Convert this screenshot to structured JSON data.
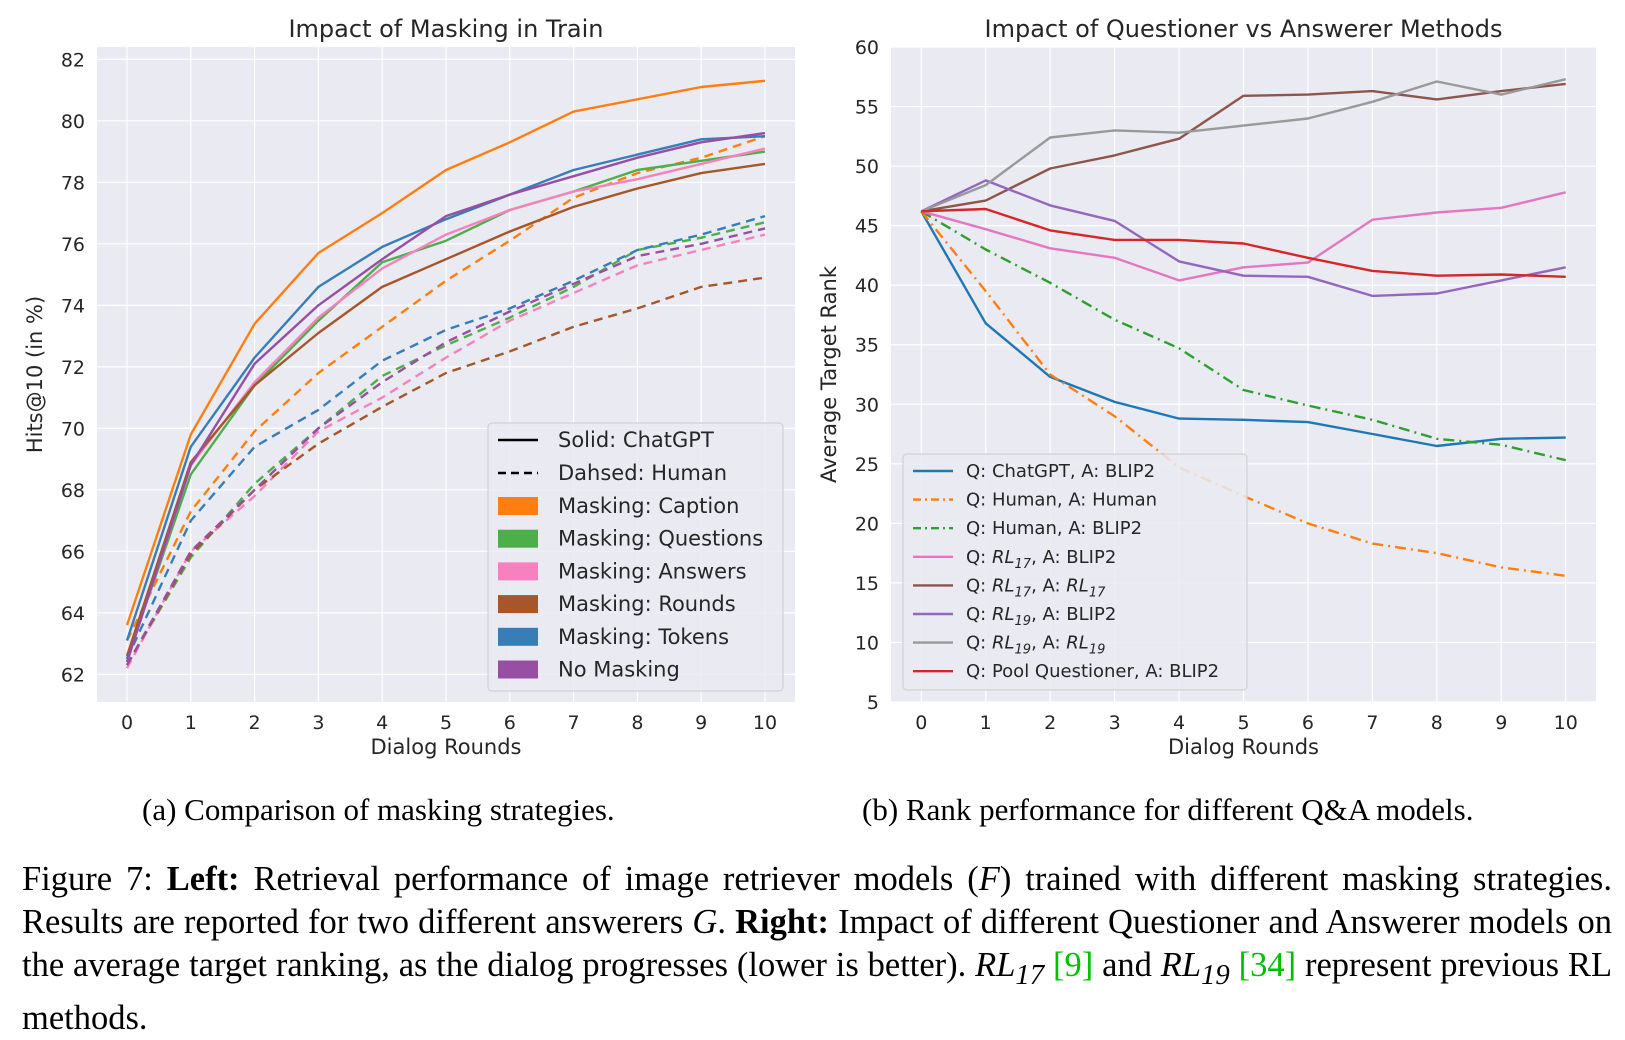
{
  "chart_data": [
    {
      "type": "line",
      "title": "Impact of Masking in Train",
      "xlabel": "Dialog Rounds",
      "ylabel": "Hits@10 (in %)",
      "x": [
        0,
        1,
        2,
        3,
        4,
        5,
        6,
        7,
        8,
        9,
        10
      ],
      "xticks": [
        "0",
        "1",
        "2",
        "3",
        "4",
        "5",
        "6",
        "7",
        "8",
        "9",
        "10"
      ],
      "yticks": [
        "62",
        "64",
        "66",
        "68",
        "70",
        "72",
        "74",
        "76",
        "78",
        "80",
        "82"
      ],
      "ylim": [
        61.1,
        82.4
      ],
      "grid": true,
      "legend_position": "bottom-right",
      "style_legend": [
        {
          "label": "Solid:     ChatGPT",
          "dash": false
        },
        {
          "label": "Dahsed: Human",
          "dash": true
        }
      ],
      "color_legend": [
        {
          "label": "Masking: Caption",
          "color": "#ff7f0e"
        },
        {
          "label": "Masking: Questions",
          "color": "#4daf4a"
        },
        {
          "label": "Masking: Answers",
          "color": "#f781bf"
        },
        {
          "label": "Masking: Rounds",
          "color": "#a65628"
        },
        {
          "label": "Masking: Tokens",
          "color": "#377eb8"
        },
        {
          "label": "No Masking",
          "color": "#984ea3"
        }
      ],
      "series": [
        {
          "name": "Masking: Caption - ChatGPT",
          "color": "#ff7f0e",
          "dash": false,
          "values": [
            63.6,
            69.8,
            73.4,
            75.7,
            77.0,
            78.4,
            79.3,
            80.3,
            80.7,
            81.1,
            81.3
          ]
        },
        {
          "name": "Masking: Caption - Human",
          "color": "#ff7f0e",
          "dash": true,
          "values": [
            63.1,
            67.3,
            69.9,
            71.8,
            73.3,
            74.8,
            76.1,
            77.5,
            78.3,
            78.8,
            79.5
          ]
        },
        {
          "name": "Masking: Questions - ChatGPT",
          "color": "#4daf4a",
          "dash": false,
          "values": [
            62.5,
            68.5,
            71.4,
            73.5,
            75.4,
            76.1,
            77.1,
            77.7,
            78.4,
            78.7,
            79.0
          ]
        },
        {
          "name": "Masking: Questions - Human",
          "color": "#4daf4a",
          "dash": true,
          "values": [
            62.3,
            65.8,
            68.2,
            70.0,
            71.7,
            72.7,
            73.6,
            74.6,
            75.8,
            76.2,
            76.7
          ]
        },
        {
          "name": "Masking: Answers - ChatGPT",
          "color": "#f781bf",
          "dash": false,
          "values": [
            62.4,
            68.8,
            71.5,
            73.6,
            75.2,
            76.3,
            77.1,
            77.7,
            78.1,
            78.6,
            79.1
          ]
        },
        {
          "name": "Masking: Answers - Human",
          "color": "#f781bf",
          "dash": true,
          "values": [
            62.2,
            66.0,
            67.8,
            69.9,
            71.0,
            72.3,
            73.5,
            74.4,
            75.3,
            75.8,
            76.3
          ]
        },
        {
          "name": "Masking: Rounds - ChatGPT",
          "color": "#a65628",
          "dash": false,
          "values": [
            62.6,
            68.9,
            71.4,
            73.1,
            74.6,
            75.5,
            76.4,
            77.2,
            77.8,
            78.3,
            78.6
          ]
        },
        {
          "name": "Masking: Rounds - Human",
          "color": "#a65628",
          "dash": true,
          "values": [
            62.3,
            65.9,
            68.0,
            69.5,
            70.7,
            71.8,
            72.5,
            73.3,
            73.9,
            74.6,
            74.9
          ]
        },
        {
          "name": "Masking: Tokens - ChatGPT",
          "color": "#377eb8",
          "dash": false,
          "values": [
            63.1,
            69.4,
            72.3,
            74.6,
            75.9,
            76.8,
            77.6,
            78.4,
            78.9,
            79.4,
            79.5
          ]
        },
        {
          "name": "Masking: Tokens - Human",
          "color": "#377eb8",
          "dash": true,
          "values": [
            62.5,
            67.0,
            69.4,
            70.6,
            72.2,
            73.2,
            73.9,
            74.8,
            75.8,
            76.3,
            76.9
          ]
        },
        {
          "name": "No Masking - ChatGPT",
          "color": "#984ea3",
          "dash": false,
          "values": [
            62.4,
            68.8,
            72.1,
            74.0,
            75.5,
            76.9,
            77.6,
            78.2,
            78.8,
            79.3,
            79.6
          ]
        },
        {
          "name": "No Masking - Human",
          "color": "#984ea3",
          "dash": true,
          "values": [
            62.3,
            66.0,
            68.0,
            70.0,
            71.5,
            72.8,
            73.8,
            74.7,
            75.6,
            76.0,
            76.5
          ]
        }
      ]
    },
    {
      "type": "line",
      "title": "Impact of Questioner vs Answerer Methods",
      "xlabel": "Dialog Rounds",
      "ylabel": "Average Target Rank",
      "x": [
        0,
        1,
        2,
        3,
        4,
        5,
        6,
        7,
        8,
        9,
        10
      ],
      "xticks": [
        "0",
        "1",
        "2",
        "3",
        "4",
        "5",
        "6",
        "7",
        "8",
        "9",
        "10"
      ],
      "yticks": [
        "5",
        "10",
        "15",
        "20",
        "25",
        "30",
        "35",
        "40",
        "45",
        "50",
        "55",
        "60"
      ],
      "ylim": [
        5,
        60
      ],
      "grid": true,
      "legend_position": "lower-left",
      "series": [
        {
          "name": "Q: ChatGPT, A: BLIP2",
          "legend_parts": [
            "Q: ChatGPT, A: BLIP2"
          ],
          "color": "#1f77b4",
          "dash": "none",
          "values": [
            46.2,
            36.8,
            32.3,
            30.2,
            28.8,
            28.7,
            28.5,
            27.5,
            26.5,
            27.1,
            27.2
          ]
        },
        {
          "name": "Q: Human, A: Human",
          "legend_parts": [
            "Q: Human, A: Human"
          ],
          "color": "#ff7f0e",
          "dash": "dashdot",
          "values": [
            46.2,
            39.5,
            32.5,
            29.0,
            24.7,
            22.3,
            20.0,
            18.3,
            17.5,
            16.3,
            15.6
          ]
        },
        {
          "name": "Q: Human, A: BLIP2",
          "legend_parts": [
            "Q: Human, A: BLIP2"
          ],
          "color": "#2ca02c",
          "dash": "dashdot",
          "values": [
            46.2,
            43.0,
            40.2,
            37.1,
            34.7,
            31.2,
            29.9,
            28.7,
            27.1,
            26.6,
            25.3
          ]
        },
        {
          "name": "Q: RL17, A: BLIP2",
          "legend_parts": [
            "Q: ",
            "RL",
            "17",
            ", A: BLIP2"
          ],
          "color": "#e377c2",
          "dash": "none",
          "values": [
            46.2,
            44.7,
            43.1,
            42.3,
            40.4,
            41.5,
            41.9,
            45.5,
            46.1,
            46.5,
            47.8
          ]
        },
        {
          "name": "Q: RL17, A: RL17",
          "legend_parts": [
            "Q: ",
            "RL",
            "17",
            ", A: ",
            "RL",
            "17"
          ],
          "color": "#8c564b",
          "dash": "none",
          "values": [
            46.2,
            47.1,
            49.8,
            50.9,
            52.3,
            55.9,
            56.0,
            56.3,
            55.6,
            56.3,
            56.9
          ]
        },
        {
          "name": "Q: RL19, A: BLIP2",
          "legend_parts": [
            "Q: ",
            "RL",
            "19",
            ", A: BLIP2"
          ],
          "color": "#9467bd",
          "dash": "none",
          "values": [
            46.2,
            48.8,
            46.7,
            45.4,
            42.0,
            40.8,
            40.7,
            39.1,
            39.3,
            40.4,
            41.5
          ]
        },
        {
          "name": "Q: RL19, A: RL19",
          "legend_parts": [
            "Q: ",
            "RL",
            "19",
            ", A: ",
            "RL",
            "19"
          ],
          "color": "#999999",
          "dash": "none",
          "values": [
            46.2,
            48.4,
            52.4,
            53.0,
            52.8,
            53.4,
            54.0,
            55.4,
            57.1,
            56.0,
            57.3
          ]
        },
        {
          "name": "Q: Pool Questioner, A: BLIP2",
          "legend_parts": [
            "Q: Pool Questioner, A: BLIP2"
          ],
          "color": "#d62728",
          "dash": "none",
          "values": [
            46.2,
            46.4,
            44.6,
            43.8,
            43.8,
            43.5,
            42.3,
            41.2,
            40.8,
            40.9,
            40.7
          ]
        }
      ]
    }
  ],
  "captions": {
    "a": "(a) Comparison of masking strategies.",
    "b": "(b) Rank performance for different Q&A models."
  },
  "figure_caption": {
    "prefix": "Figure 7: ",
    "left_label": "Left:",
    "left_text": " Retrieval performance of image retriever models (",
    "var_f": "F",
    "mid_text": ") trained with different masking strategies. Results are reported for two different answerers ",
    "var_g": "G",
    "dot": ". ",
    "right_label": "Right:",
    "right_text": " Impact of different Questioner and Answerer models on the average target ranking, as the dialog progresses (lower is better). ",
    "rl17": "RL",
    "rl17_sub": "17",
    "cite1": "[9]",
    "and_text": " and ",
    "rl19": "RL",
    "rl19_sub": "19",
    "cite2": "[34]",
    "end_text": " represent previous RL methods."
  }
}
